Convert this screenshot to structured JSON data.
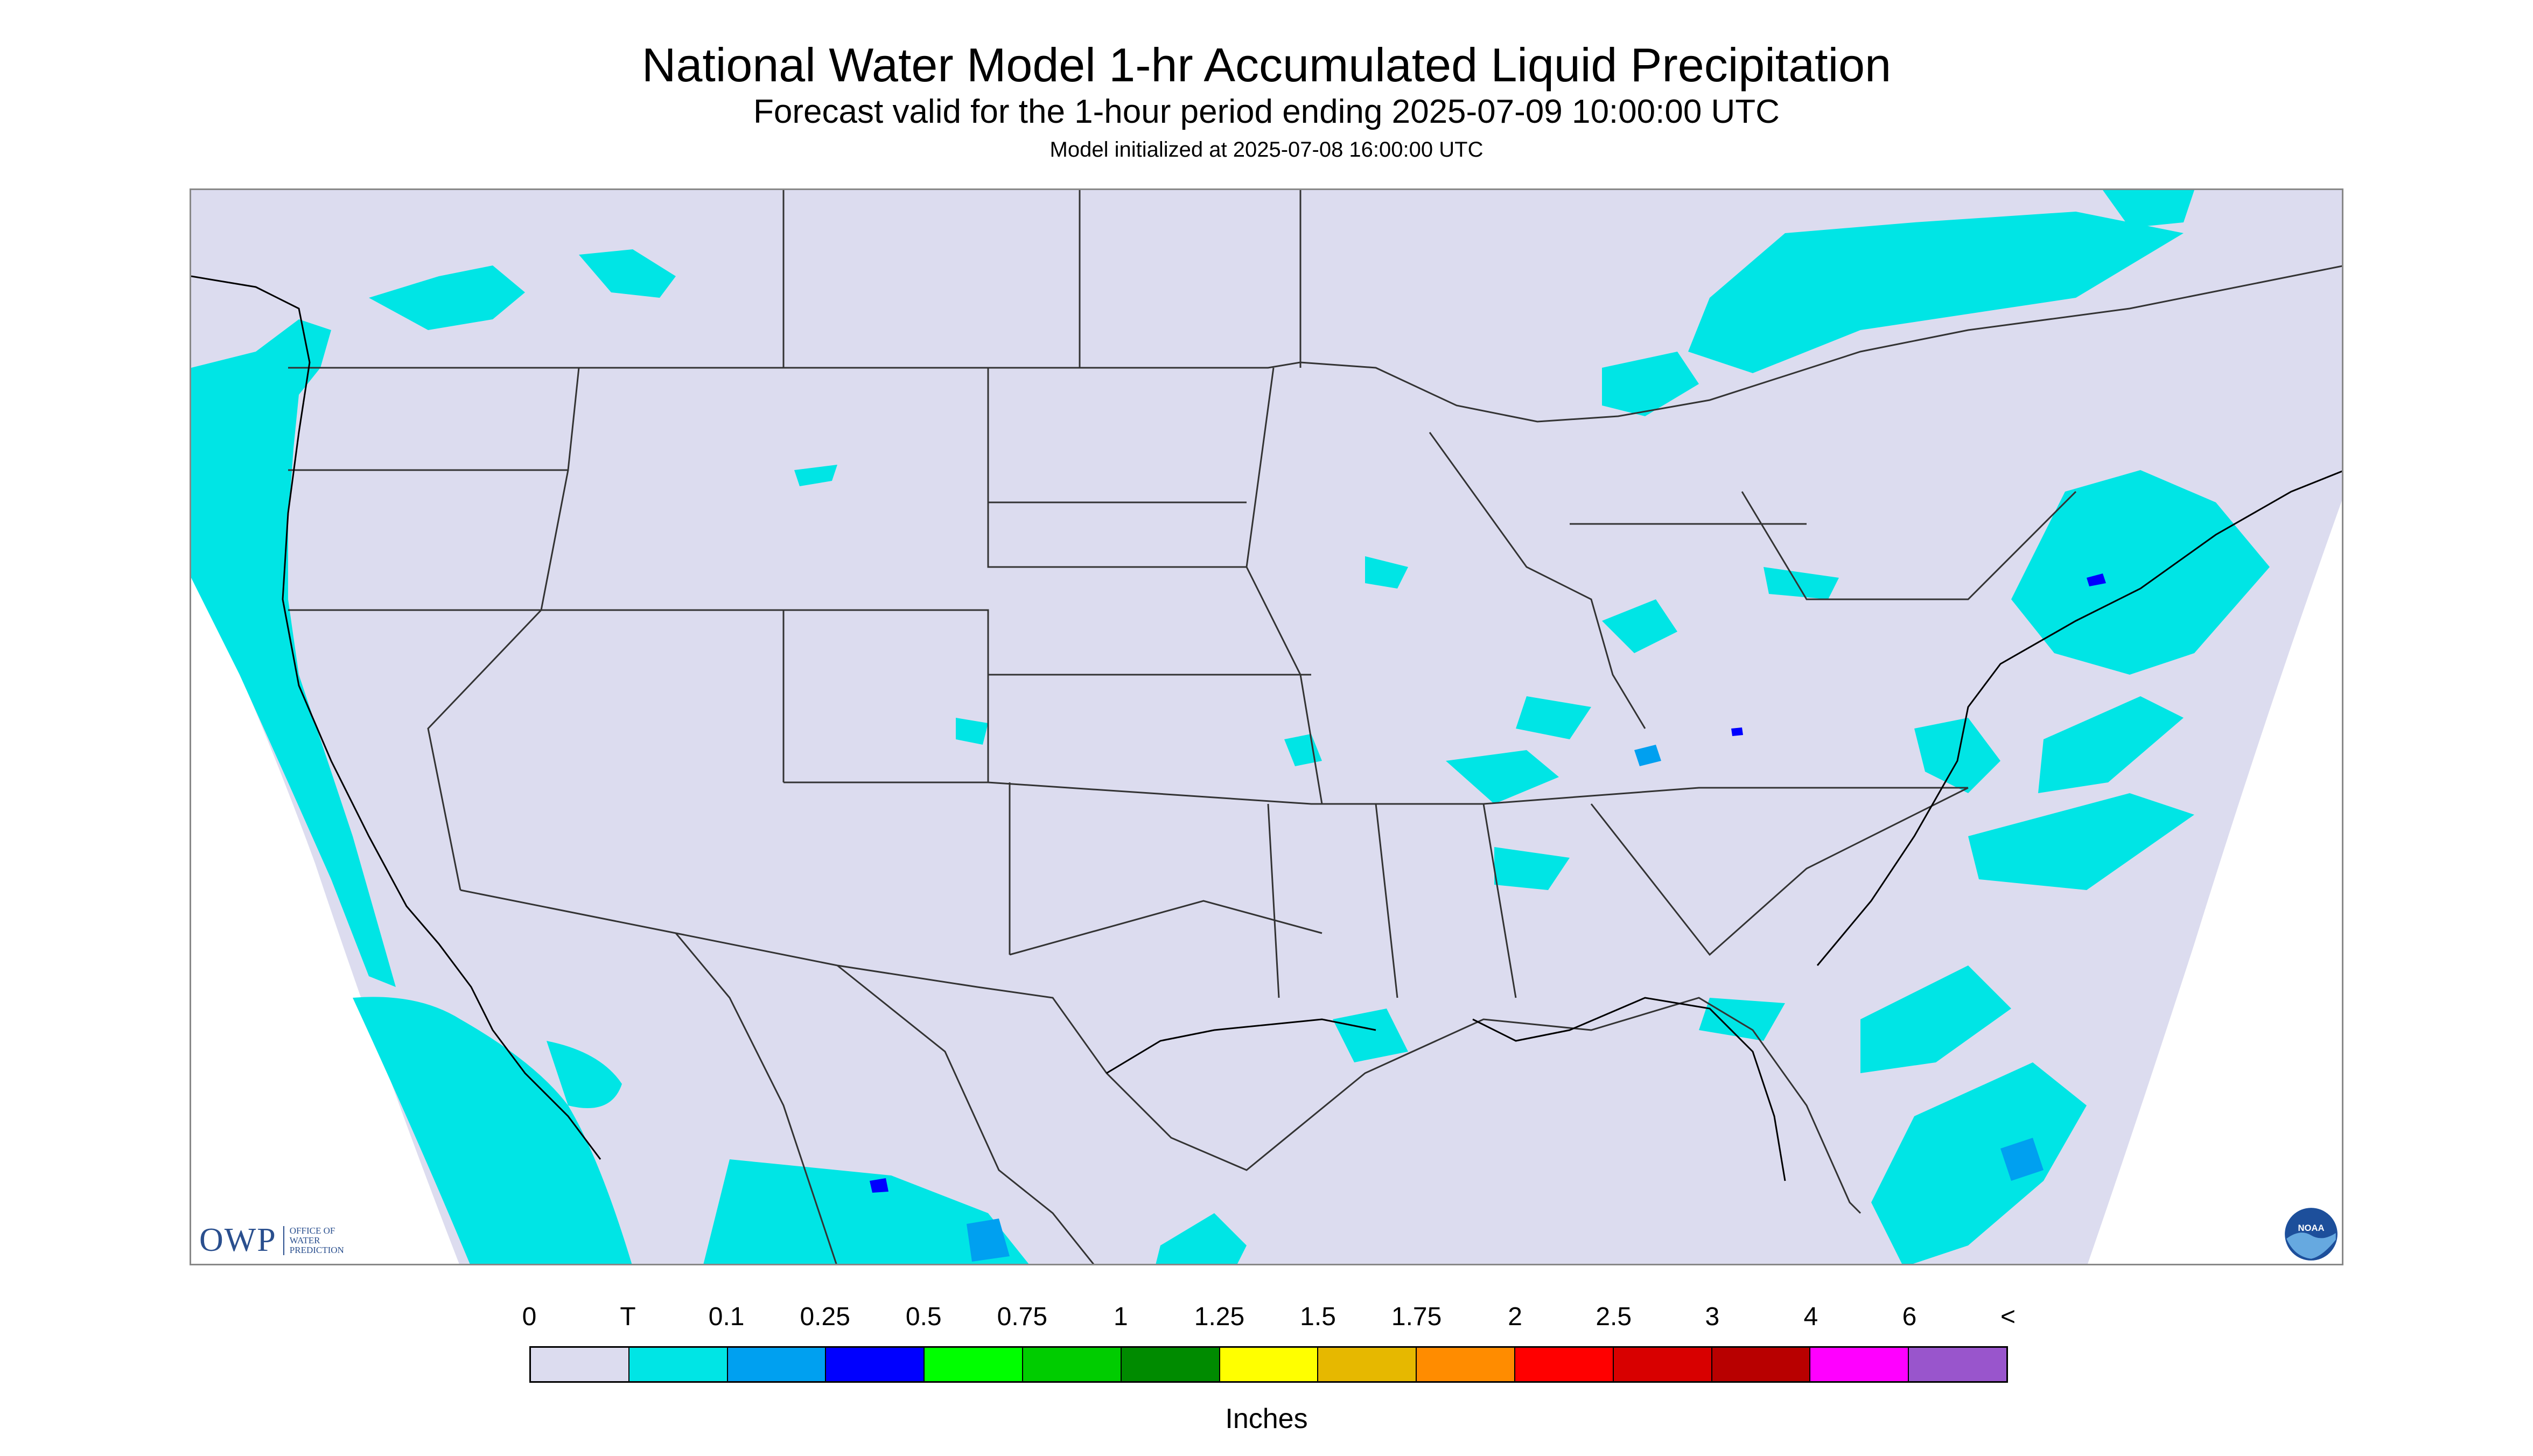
{
  "title": "National Water Model 1-hr Accumulated Liquid Precipitation",
  "subtitle": "Forecast valid for the 1-hour period ending 2025-07-09 10:00:00 UTC",
  "init_line": "Model initialized at 2025-07-08 16:00:00 UTC",
  "logos": {
    "owp_text": "OWP",
    "owp_sub": "OFFICE OF WATER PREDICTION",
    "noaa_text": "NOAA"
  },
  "legend": {
    "units": "Inches",
    "labels": [
      "0",
      "T",
      "0.1",
      "0.25",
      "0.5",
      "0.75",
      "1",
      "1.25",
      "1.5",
      "1.75",
      "2",
      "2.5",
      "3",
      "4",
      "6",
      "<"
    ],
    "colors": [
      "#dcdcef",
      "#00e5e5",
      "#00a0f0",
      "#0000ff",
      "#00ff00",
      "#00cc00",
      "#008b00",
      "#ffff00",
      "#e6b800",
      "#ff8c00",
      "#ff0000",
      "#d80000",
      "#b80000",
      "#ff00ff",
      "#9955cc"
    ]
  },
  "map_colors": {
    "land": "#dcdcef",
    "trace": "#00e5e5",
    "light": "#00a0f0",
    "moderate": "#0000ff",
    "border": "#333333"
  }
}
